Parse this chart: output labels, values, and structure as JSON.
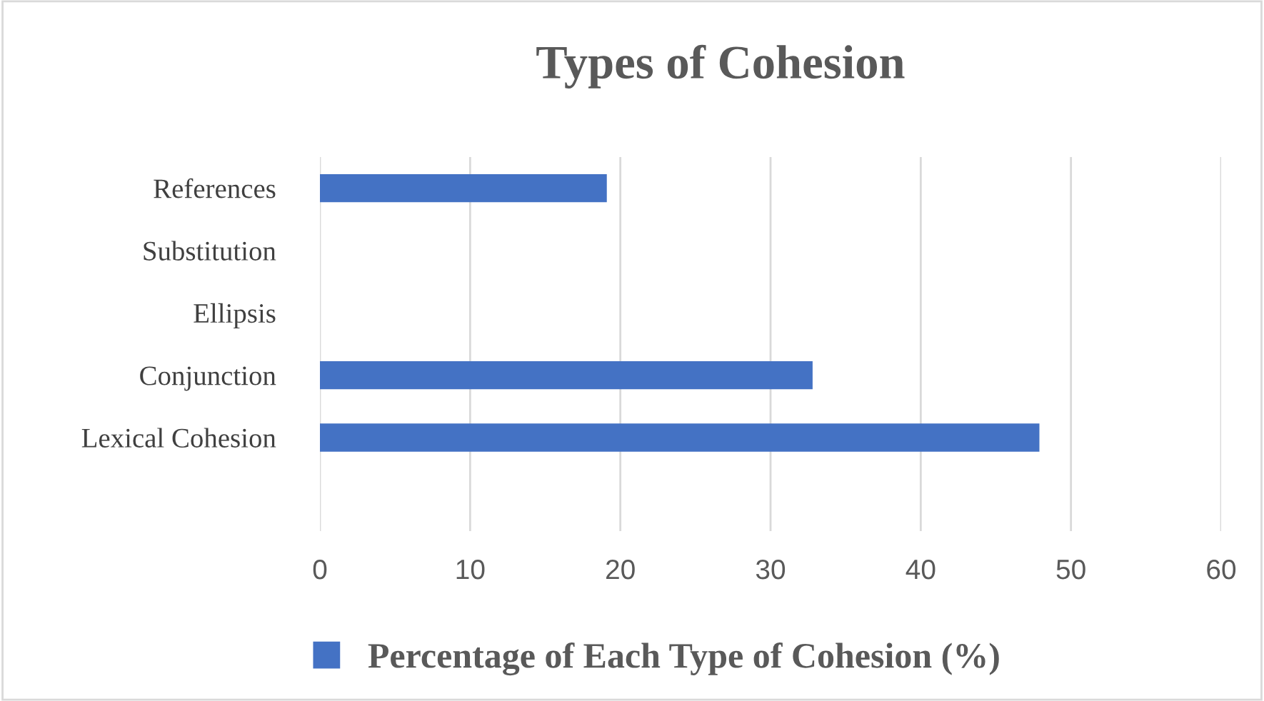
{
  "chart_data": {
    "type": "bar",
    "orientation": "horizontal",
    "title": "Types of Cohesion",
    "categories": [
      "References",
      "Substitution",
      "Ellipsis",
      "Conjunction",
      "Lexical Cohesion",
      null
    ],
    "series": [
      {
        "name": "Percentage of Each Type of Cohesion (%)",
        "color": "#4472c4",
        "values": [
          19.1,
          0,
          0,
          32.8,
          47.9,
          null
        ]
      }
    ],
    "xlim": [
      0,
      60
    ],
    "xticks": [
      0,
      10,
      20,
      30,
      40,
      50,
      60
    ],
    "grid": "x",
    "legend": "bottom"
  }
}
